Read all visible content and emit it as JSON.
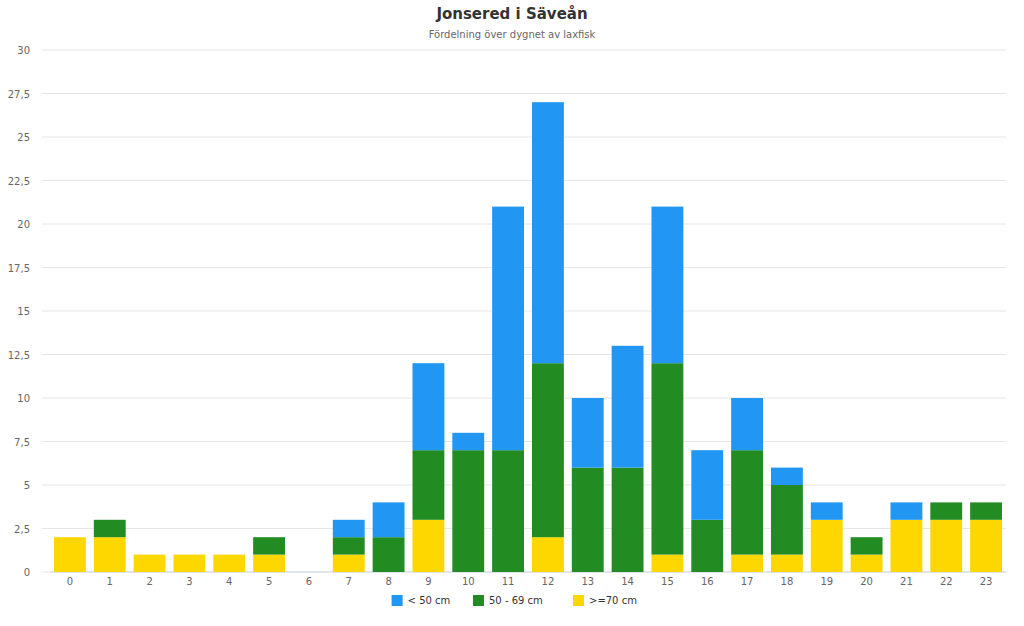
{
  "chart_data": {
    "type": "bar",
    "title": "Jonsered i Säveån",
    "subtitle": "Fördelning över dygnet av laxfisk",
    "categories": [
      "0",
      "1",
      "2",
      "3",
      "4",
      "5",
      "6",
      "7",
      "8",
      "9",
      "10",
      "11",
      "12",
      "13",
      "14",
      "15",
      "16",
      "17",
      "18",
      "19",
      "20",
      "21",
      "22",
      "23"
    ],
    "series": [
      {
        "name": "< 50 cm",
        "color": "#2196f3",
        "values": [
          0,
          0,
          0,
          0,
          0,
          0,
          0,
          1,
          2,
          5,
          1,
          14,
          15,
          4,
          7,
          9,
          4,
          3,
          1,
          1,
          0,
          1,
          0,
          0
        ]
      },
      {
        "name": "50 - 69 cm",
        "color": "#228b22",
        "values": [
          0,
          1,
          0,
          0,
          0,
          1,
          0,
          1,
          2,
          4,
          7,
          7,
          10,
          6,
          6,
          11,
          3,
          6,
          4,
          0,
          1,
          0,
          1,
          1
        ]
      },
      {
        "name": ">=70 cm",
        "color": "#ffd700",
        "values": [
          2,
          2,
          1,
          1,
          1,
          1,
          0,
          1,
          0,
          3,
          0,
          0,
          2,
          0,
          0,
          1,
          0,
          1,
          1,
          3,
          1,
          3,
          3,
          3
        ]
      }
    ],
    "ylim": [
      0,
      30
    ],
    "yticks": [
      0,
      {
        "value": 2.5,
        "label": "2,5"
      },
      5,
      {
        "value": 7.5,
        "label": "7,5"
      },
      10,
      {
        "value": 12.5,
        "label": "12,5"
      },
      15,
      {
        "value": 17.5,
        "label": "17,5"
      },
      20,
      {
        "value": 22.5,
        "label": "22,5"
      },
      25,
      {
        "value": 27.5,
        "label": "27,5"
      },
      30
    ],
    "stacked": true,
    "grid": true,
    "legend": "bottom"
  }
}
